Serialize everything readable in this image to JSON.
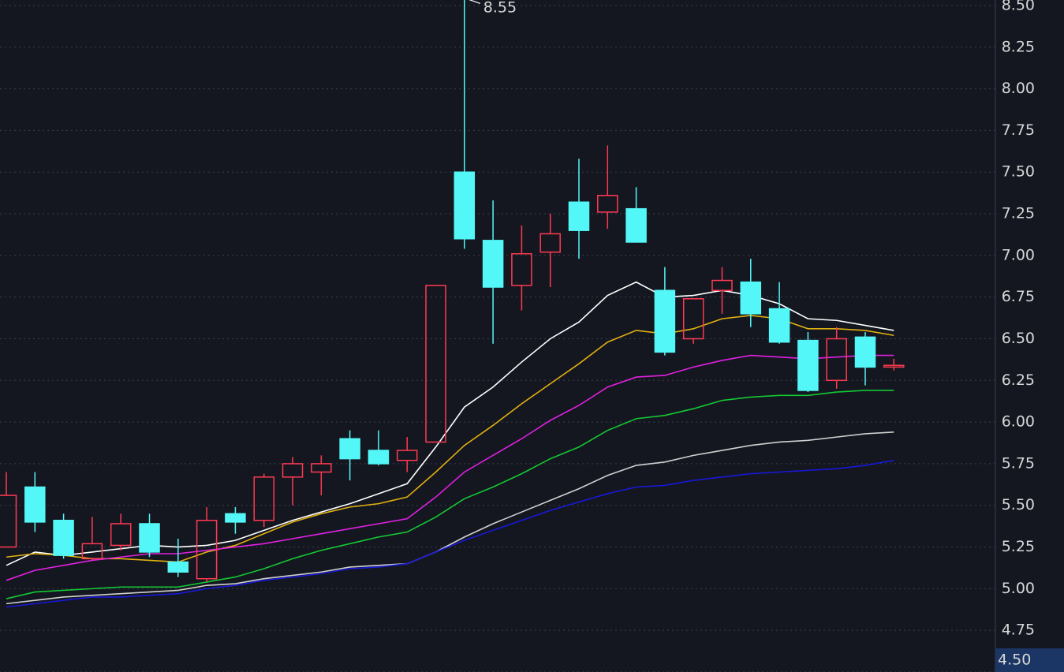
{
  "chart_data": {
    "type": "candlestick",
    "open": [
      5.25,
      5.61,
      5.41,
      5.18,
      5.26,
      5.39,
      5.16,
      5.06,
      5.45,
      5.41,
      5.67,
      5.7,
      5.9,
      5.83,
      5.77,
      5.88,
      7.5,
      7.09,
      6.82,
      7.02,
      7.32,
      7.26,
      7.28,
      6.79,
      6.5,
      6.79,
      6.84,
      6.68,
      6.49,
      6.25,
      6.51,
      6.33
    ],
    "high": [
      5.7,
      5.7,
      5.45,
      5.43,
      5.45,
      5.45,
      5.3,
      5.49,
      5.49,
      5.69,
      5.79,
      5.8,
      5.95,
      5.95,
      5.91,
      6.82,
      8.55,
      7.33,
      7.18,
      7.25,
      7.58,
      7.66,
      7.41,
      6.93,
      6.74,
      6.93,
      6.98,
      6.84,
      6.54,
      6.57,
      6.54,
      6.38
    ],
    "low": [
      5.25,
      5.34,
      5.18,
      5.17,
      5.23,
      5.19,
      5.07,
      5.04,
      5.33,
      5.37,
      5.5,
      5.56,
      5.65,
      5.74,
      5.7,
      5.88,
      7.04,
      6.47,
      6.67,
      6.81,
      6.98,
      7.16,
      7.08,
      6.4,
      6.47,
      6.65,
      6.57,
      6.47,
      6.18,
      6.2,
      6.22,
      6.31
    ],
    "close": [
      5.56,
      5.4,
      5.2,
      5.27,
      5.39,
      5.22,
      5.1,
      5.41,
      5.4,
      5.67,
      5.75,
      5.75,
      5.78,
      5.75,
      5.83,
      6.82,
      7.1,
      6.81,
      7.01,
      7.13,
      7.15,
      7.36,
      7.08,
      6.42,
      6.74,
      6.85,
      6.65,
      6.48,
      6.19,
      6.5,
      6.33,
      6.34
    ],
    "up_color": "#ff3a52",
    "down_color": "#54f7f7",
    "series": [
      {
        "color": "#ffffff",
        "values": [
          5.14,
          5.22,
          5.2,
          5.22,
          5.24,
          5.26,
          5.25,
          5.26,
          5.29,
          5.35,
          5.41,
          5.46,
          5.51,
          5.57,
          5.63,
          5.85,
          6.09,
          6.21,
          6.36,
          6.5,
          6.6,
          6.76,
          6.84,
          6.75,
          6.76,
          6.79,
          6.76,
          6.71,
          6.62,
          6.61,
          6.58,
          6.55
        ]
      },
      {
        "color": "#e0b010",
        "values": [
          5.19,
          5.21,
          5.2,
          5.18,
          5.18,
          5.17,
          5.16,
          5.22,
          5.26,
          5.33,
          5.4,
          5.45,
          5.49,
          5.51,
          5.55,
          5.7,
          5.86,
          5.98,
          6.11,
          6.23,
          6.35,
          6.48,
          6.55,
          6.53,
          6.56,
          6.62,
          6.64,
          6.62,
          6.56,
          6.56,
          6.55,
          6.52
        ]
      },
      {
        "color": "#e020e0",
        "values": [
          5.05,
          5.11,
          5.14,
          5.17,
          5.19,
          5.21,
          5.21,
          5.23,
          5.25,
          5.27,
          5.3,
          5.33,
          5.36,
          5.39,
          5.42,
          5.55,
          5.7,
          5.8,
          5.9,
          6.01,
          6.1,
          6.21,
          6.27,
          6.28,
          6.33,
          6.37,
          6.4,
          6.39,
          6.38,
          6.39,
          6.4,
          6.4
        ]
      },
      {
        "color": "#14c834",
        "values": [
          4.94,
          4.98,
          4.99,
          5.0,
          5.01,
          5.01,
          5.01,
          5.04,
          5.07,
          5.12,
          5.18,
          5.23,
          5.27,
          5.31,
          5.34,
          5.43,
          5.54,
          5.61,
          5.69,
          5.78,
          5.85,
          5.95,
          6.02,
          6.04,
          6.08,
          6.13,
          6.15,
          6.16,
          6.16,
          6.18,
          6.19,
          6.19
        ]
      },
      {
        "color": "#d0d0d0",
        "values": [
          4.91,
          4.93,
          4.95,
          4.96,
          4.97,
          4.98,
          4.99,
          5.02,
          5.03,
          5.06,
          5.08,
          5.1,
          5.13,
          5.14,
          5.15,
          5.22,
          5.31,
          5.39,
          5.46,
          5.53,
          5.6,
          5.68,
          5.74,
          5.76,
          5.8,
          5.83,
          5.86,
          5.88,
          5.89,
          5.91,
          5.93,
          5.94
        ]
      },
      {
        "color": "#1818d8",
        "values": [
          4.89,
          4.91,
          4.93,
          4.95,
          4.95,
          4.96,
          4.97,
          5.0,
          5.02,
          5.05,
          5.07,
          5.09,
          5.12,
          5.13,
          5.15,
          5.22,
          5.29,
          5.35,
          5.41,
          5.47,
          5.52,
          5.57,
          5.61,
          5.62,
          5.65,
          5.67,
          5.69,
          5.7,
          5.71,
          5.72,
          5.74,
          5.77
        ]
      }
    ],
    "ylim": [
      4.5,
      8.533
    ],
    "yticks": [
      {
        "value": 8.5,
        "label": "8.50"
      },
      8.25,
      {
        "value": 8.0,
        "label": "8.00"
      },
      7.75,
      {
        "value": 7.5,
        "label": "7.50"
      },
      7.25,
      {
        "value": 7.0,
        "label": "7.00"
      },
      6.75,
      {
        "value": 6.5,
        "label": "6.50"
      },
      6.25,
      {
        "value": 6.0,
        "label": "6.00"
      },
      5.75,
      {
        "value": 5.5,
        "label": "5.50"
      },
      5.25,
      {
        "value": 5.0,
        "label": "5.00"
      },
      4.75,
      {
        "value": 4.5,
        "label": "4.50"
      }
    ],
    "grid": true
  }
}
